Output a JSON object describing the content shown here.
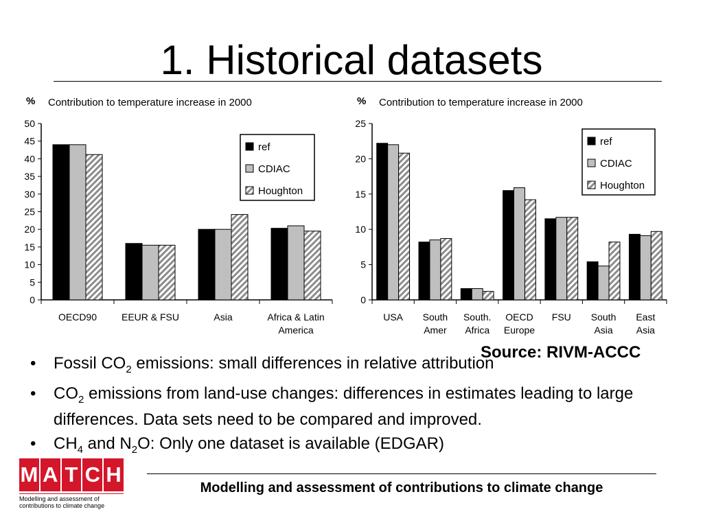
{
  "slide": {
    "title": "1. Historical datasets",
    "source": "Source: RIVM-ACCC",
    "bullets": [
      {
        "parts": [
          {
            "t": "Fossil CO"
          },
          {
            "sub": "2"
          },
          {
            "t": " emissions: small differences in relative attribution"
          }
        ]
      },
      {
        "parts": [
          {
            "t": "CO"
          },
          {
            "sub": "2"
          },
          {
            "t": " emissions from land-use changes: differences in estimates leading to large differences. Data sets need to be compared and improved."
          }
        ]
      },
      {
        "parts": [
          {
            "t": "CH"
          },
          {
            "sub": "4"
          },
          {
            "t": " and N"
          },
          {
            "sub": "2"
          },
          {
            "t": "O: Only one dataset is available (EDGAR)"
          }
        ]
      }
    ],
    "bullet_symbol": "•",
    "logo": {
      "letters": [
        "M",
        "A",
        "T",
        "C",
        "H"
      ],
      "tagline": "Modelling and assessment of contributions to climate change"
    },
    "footer": "Modelling and assessment of contributions to climate change",
    "colors": {
      "logo_red": "#d4162a",
      "ref": "#000000",
      "cdiac": "#bfbfbf",
      "houghton_stripe": "#8c8c8c"
    }
  },
  "chart_data": [
    {
      "type": "bar",
      "title": "Contribution to temperature increase in 2000",
      "ylabel": "%",
      "ylim": [
        0,
        50
      ],
      "yticks": [
        0,
        5,
        10,
        15,
        20,
        25,
        30,
        35,
        40,
        45,
        50
      ],
      "categories": [
        "OECD90",
        "EEUR & FSU",
        "Asia",
        "Africa & Latin America"
      ],
      "series": [
        {
          "name": "ref",
          "values": [
            44,
            16,
            20,
            20.3
          ]
        },
        {
          "name": "CDIAC",
          "values": [
            44,
            15.5,
            20,
            21
          ]
        },
        {
          "name": "Houghton",
          "values": [
            41.2,
            15.5,
            24.2,
            19.5
          ]
        }
      ],
      "legend": "top-right"
    },
    {
      "type": "bar",
      "title": "Contribution to temperature increase in 2000",
      "ylabel": "%",
      "ylim": [
        0,
        25
      ],
      "yticks": [
        0,
        5,
        10,
        15,
        20,
        25
      ],
      "categories": [
        "USA",
        "South Amer",
        "South. Africa",
        "OECD Europe",
        "FSU",
        "South Asia",
        "East Asia"
      ],
      "series": [
        {
          "name": "ref",
          "values": [
            22.2,
            8.2,
            1.6,
            15.5,
            11.5,
            5.4,
            9.3
          ]
        },
        {
          "name": "CDIAC",
          "values": [
            22,
            8.5,
            1.6,
            15.9,
            11.7,
            4.8,
            9.1
          ]
        },
        {
          "name": "Houghton",
          "values": [
            20.8,
            8.7,
            1.2,
            14.2,
            11.7,
            8.2,
            9.7
          ]
        }
      ],
      "legend": "top-right"
    }
  ]
}
